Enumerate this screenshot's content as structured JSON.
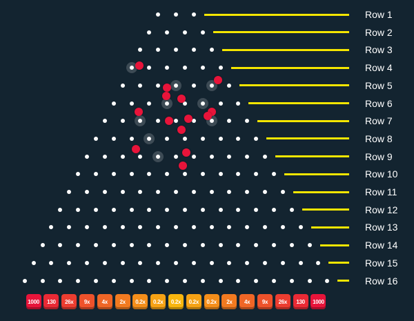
{
  "rows": [
    {
      "label": "Row 1"
    },
    {
      "label": "Row 2"
    },
    {
      "label": "Row 3"
    },
    {
      "label": "Row 4"
    },
    {
      "label": "Row 5"
    },
    {
      "label": "Row 6"
    },
    {
      "label": "Row 7"
    },
    {
      "label": "Row 8"
    },
    {
      "label": "Row 9"
    },
    {
      "label": "Row 10"
    },
    {
      "label": "Row 11"
    },
    {
      "label": "Row 12"
    },
    {
      "label": "Row 13"
    },
    {
      "label": "Row 14"
    },
    {
      "label": "Row 15"
    },
    {
      "label": "Row 16"
    }
  ],
  "multipliers": [
    {
      "label": "1000",
      "color": "#e8143a"
    },
    {
      "label": "130",
      "color": "#ea2a35"
    },
    {
      "label": "26x",
      "color": "#ec3d30"
    },
    {
      "label": "9x",
      "color": "#ee522b"
    },
    {
      "label": "4x",
      "color": "#f06626"
    },
    {
      "label": "2x",
      "color": "#f27a20"
    },
    {
      "label": "0.2x",
      "color": "#f48e1a"
    },
    {
      "label": "0.2x",
      "color": "#f6a214"
    },
    {
      "label": "0.2x",
      "color": "#f8b60e"
    },
    {
      "label": "0.2x",
      "color": "#f6a214"
    },
    {
      "label": "0.2x",
      "color": "#f48e1a"
    },
    {
      "label": "2x",
      "color": "#f27a20"
    },
    {
      "label": "4x",
      "color": "#f06626"
    },
    {
      "label": "9x",
      "color": "#ee522b"
    },
    {
      "label": "26x",
      "color": "#ec3d30"
    },
    {
      "label": "130",
      "color": "#ea2a35"
    },
    {
      "label": "1000",
      "color": "#e8143a"
    }
  ],
  "colors": {
    "background": "#132430",
    "peg": "#ffffff",
    "ball": "#e8143a",
    "row_line": "#f5e600"
  }
}
